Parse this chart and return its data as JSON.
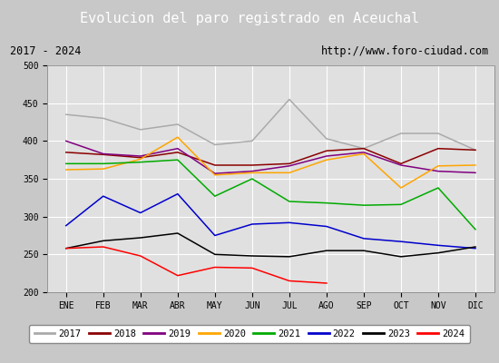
{
  "title": "Evolucion del paro registrado en Aceuchal",
  "subtitle_left": "2017 - 2024",
  "subtitle_right": "http://www.foro-ciudad.com",
  "months": [
    "ENE",
    "FEB",
    "MAR",
    "ABR",
    "MAY",
    "JUN",
    "JUL",
    "AGO",
    "SEP",
    "OCT",
    "NOV",
    "DIC"
  ],
  "ylim": [
    200,
    500
  ],
  "yticks": [
    200,
    250,
    300,
    350,
    400,
    450,
    500
  ],
  "series": [
    {
      "year": "2017",
      "color": "#aaaaaa",
      "data": [
        435,
        430,
        415,
        422,
        395,
        400,
        455,
        403,
        390,
        410,
        410,
        388
      ]
    },
    {
      "year": "2018",
      "color": "#8b0000",
      "data": [
        385,
        382,
        378,
        385,
        368,
        368,
        370,
        387,
        390,
        370,
        390,
        388
      ]
    },
    {
      "year": "2019",
      "color": "#800080",
      "data": [
        400,
        383,
        380,
        390,
        357,
        360,
        367,
        380,
        385,
        368,
        360,
        358
      ]
    },
    {
      "year": "2020",
      "color": "#ffa500",
      "data": [
        362,
        363,
        376,
        405,
        355,
        358,
        358,
        375,
        383,
        338,
        367,
        368
      ]
    },
    {
      "year": "2021",
      "color": "#00aa00",
      "data": [
        370,
        370,
        372,
        375,
        327,
        350,
        320,
        318,
        315,
        316,
        338,
        283
      ]
    },
    {
      "year": "2022",
      "color": "#0000cc",
      "data": [
        288,
        327,
        305,
        330,
        275,
        290,
        292,
        287,
        271,
        267,
        262,
        258
      ]
    },
    {
      "year": "2023",
      "color": "#000000",
      "data": [
        258,
        268,
        272,
        278,
        250,
        248,
        247,
        255,
        255,
        247,
        252,
        260
      ]
    },
    {
      "year": "2024",
      "color": "#ff0000",
      "data": [
        258,
        260,
        248,
        222,
        233,
        232,
        215,
        212,
        null,
        null,
        null,
        null
      ]
    }
  ],
  "outer_bg": "#c8c8c8",
  "plot_bg_color": "#e0e0e0",
  "title_bg_color": "#4472c4",
  "title_text_color": "#ffffff",
  "subtitle_bg_color": "#d8d8d8",
  "grid_color": "#ffffff",
  "legend_bg": "#ffffff"
}
